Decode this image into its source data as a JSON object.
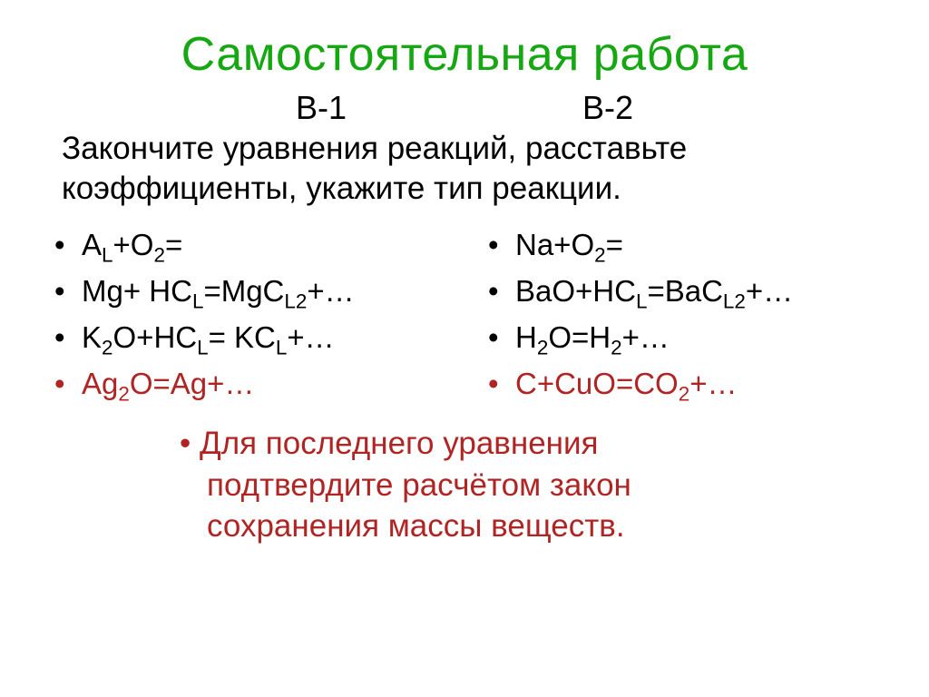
{
  "colors": {
    "title": "#16a812",
    "body": "#000000",
    "accent": "#b02524",
    "background": "#ffffff"
  },
  "typography": {
    "title_fontsize": 52,
    "body_fontsize": 35,
    "equation_fontsize": 33,
    "font_family": "Arial"
  },
  "title": "Самостоятельная работа",
  "variant_left": "В-1",
  "variant_right": "В-2",
  "instruction": "Закончите уравнения реакций, расставьте коэффициенты, укажите тип реакции.",
  "left": {
    "items": [
      {
        "html": "A<span class='sub'>L</span>+O<span class='sub'>2</span>=",
        "red": false
      },
      {
        "html": "Mg+ HC<span class='sub'>L</span>=MgC<span class='sub'>L2</span>+…",
        "red": false
      },
      {
        "html": "K<span class='sub'>2</span>O+HC<span class='sub'>L</span>= KC<span class='sub'>L</span>+…",
        "red": false
      },
      {
        "html": "Ag<span class='sub'>2</span>O=Ag+…",
        "red": true
      }
    ]
  },
  "right": {
    "items": [
      {
        "html": "Na+O<span class='sub'>2</span>=",
        "red": false
      },
      {
        "html": "BaO+HC<span class='sub'>L</span>=BaC<span class='sub'>L2</span>+…",
        "red": false
      },
      {
        "html": "H<span class='sub'>2</span>O=H<span class='sub'>2</span>+…",
        "red": false
      },
      {
        "html": "C+CuO=CO<span class='sub'>2</span>+…",
        "red": true
      }
    ]
  },
  "footer": {
    "line1": "Для последнего уравнения",
    "line2": "подтвердите расчётом закон",
    "line3": "сохранения массы веществ."
  }
}
